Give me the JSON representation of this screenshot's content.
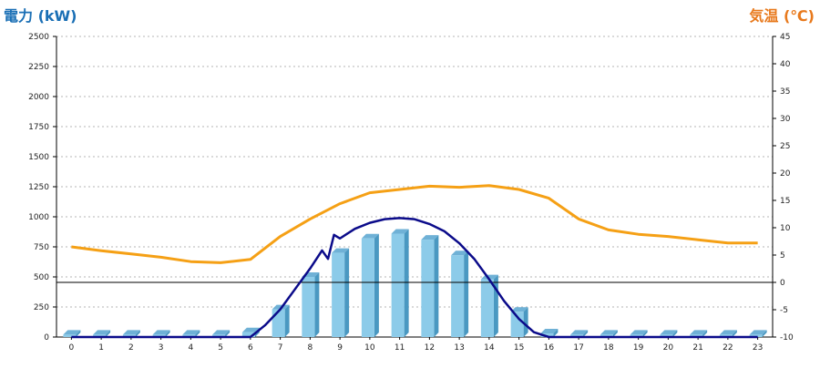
{
  "chart_data": {
    "type": "bar",
    "left_axis_title": "電力 (kW)",
    "right_axis_title": "気温 (℃)",
    "colors": {
      "left_title": "#1a6fb5",
      "right_title": "#e8791c",
      "bar_front": "#8ccbe9",
      "bar_side": "#4a98c1",
      "bar_top": "#6fb1d6",
      "power_line": "#0b0b8a",
      "temperature_line": "#f5a015",
      "grid": "#b5b5b5",
      "reference_line": "#000000"
    },
    "categories": [
      "0",
      "1",
      "2",
      "3",
      "4",
      "5",
      "6",
      "7",
      "8",
      "9",
      "10",
      "11",
      "12",
      "13",
      "14",
      "15",
      "16",
      "17",
      "18",
      "19",
      "20",
      "21",
      "22",
      "23"
    ],
    "left_ylim": [
      0,
      2500
    ],
    "left_ticks": [
      "0",
      "250",
      "500",
      "750",
      "1000",
      "1250",
      "1500",
      "1750",
      "2000",
      "2250",
      "2500"
    ],
    "right_ylim": [
      -10,
      45
    ],
    "right_ticks": [
      "-10",
      "-5",
      "0",
      "5",
      "10",
      "15",
      "20",
      "25",
      "30",
      "35",
      "40",
      "45"
    ],
    "grid": true,
    "bars": [
      20,
      20,
      20,
      20,
      20,
      20,
      40,
      230,
      500,
      700,
      820,
      860,
      810,
      680,
      480,
      210,
      30,
      20,
      20,
      20,
      20,
      20,
      20,
      20
    ],
    "power_line": {
      "x": [
        0,
        1,
        2,
        3,
        4,
        5,
        6,
        6.5,
        7,
        7.5,
        8,
        8.4,
        8.6,
        8.8,
        9,
        9.5,
        10,
        10.5,
        11,
        11.5,
        12,
        12.5,
        13,
        13.5,
        14,
        14.5,
        15,
        15.5,
        16,
        17,
        18,
        19,
        20,
        21,
        22,
        23
      ],
      "y": [
        0,
        0,
        0,
        0,
        0,
        0,
        0,
        100,
        230,
        400,
        570,
        720,
        650,
        850,
        820,
        900,
        950,
        980,
        990,
        980,
        940,
        880,
        780,
        650,
        480,
        300,
        150,
        40,
        0,
        0,
        0,
        0,
        0,
        0,
        0,
        0
      ]
    },
    "temperature_line": {
      "x": [
        0,
        1,
        2,
        3,
        4,
        5,
        6,
        7,
        8,
        9,
        10,
        11,
        12,
        13,
        14,
        15,
        16,
        17,
        18,
        19,
        20,
        21,
        22,
        23
      ],
      "y": [
        6.5,
        5.8,
        5.2,
        4.6,
        3.8,
        3.6,
        4.2,
        8.4,
        11.6,
        14.4,
        16.4,
        17,
        17.6,
        17.4,
        17.7,
        17,
        15.4,
        11.6,
        9.6,
        8.8,
        8.4,
        7.8,
        7.2,
        7.2
      ]
    },
    "reference_line_value": 0
  }
}
